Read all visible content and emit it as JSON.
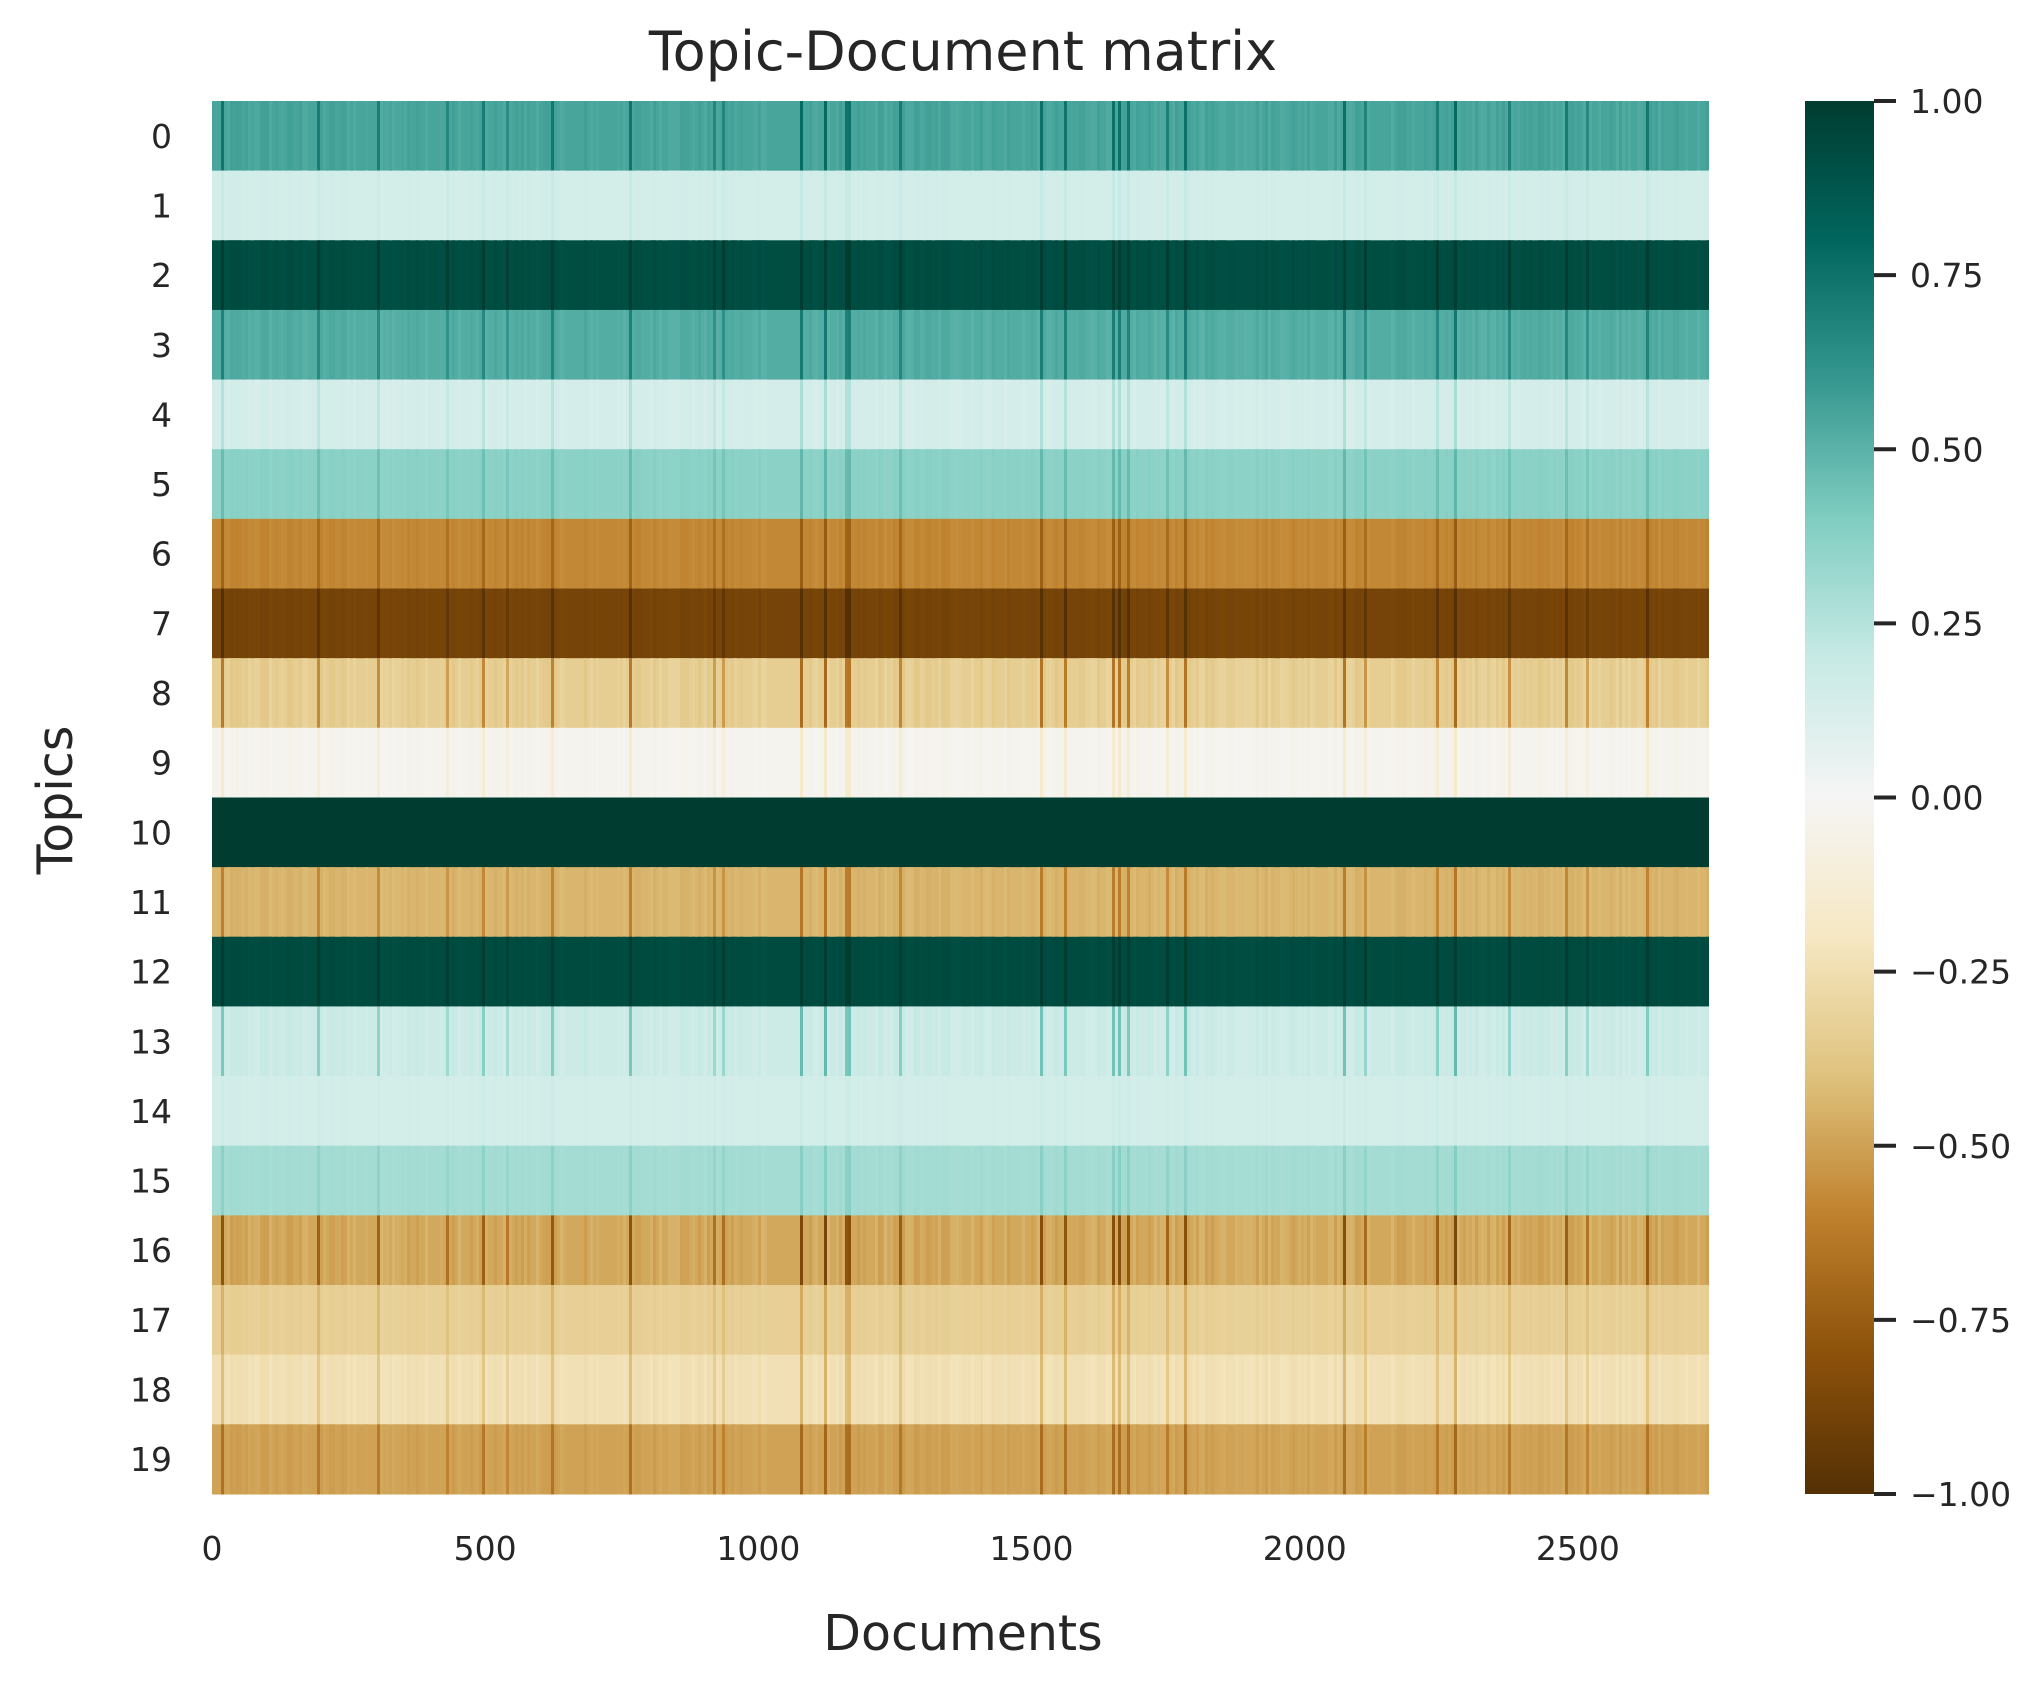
{
  "chart_data": {
    "type": "heatmap",
    "title": "Topic-Document matrix",
    "xlabel": "Documents",
    "ylabel": "Topics",
    "x_range": [
      0,
      2740
    ],
    "x_ticks": [
      "0",
      "500",
      "1000",
      "1500",
      "2000",
      "2500"
    ],
    "x_tick_values": [
      0,
      500,
      1000,
      1500,
      2000,
      2500
    ],
    "y_categories": [
      "0",
      "1",
      "2",
      "3",
      "4",
      "5",
      "6",
      "7",
      "8",
      "9",
      "10",
      "11",
      "12",
      "13",
      "14",
      "15",
      "16",
      "17",
      "18",
      "19"
    ],
    "row_mean_values": [
      0.55,
      0.15,
      0.92,
      0.52,
      0.14,
      0.37,
      -0.58,
      -0.88,
      -0.34,
      -0.03,
      1.0,
      -0.44,
      0.93,
      0.18,
      0.15,
      0.3,
      -0.48,
      -0.33,
      -0.24,
      -0.5
    ],
    "row_variation": [
      0.08,
      0.02,
      0.05,
      0.07,
      0.05,
      0.04,
      0.06,
      0.05,
      0.12,
      0.05,
      0.0,
      0.07,
      0.04,
      0.1,
      0.01,
      0.03,
      0.13,
      0.05,
      0.07,
      0.07
    ],
    "colorbar": {
      "colormap": "BrBG",
      "range": [
        -1,
        1
      ],
      "ticks": [
        "1.00",
        "0.75",
        "0.50",
        "0.25",
        "0.00",
        "−0.25",
        "−0.50",
        "−0.75",
        "−1.00"
      ],
      "tick_values": [
        1.0,
        0.75,
        0.5,
        0.25,
        0.0,
        -0.25,
        -0.5,
        -0.75,
        -1.0
      ]
    },
    "colors": {
      "text": "#262626",
      "brbg_stops": [
        "#543005",
        "#8c510a",
        "#bf812d",
        "#dfc27d",
        "#f6e8c3",
        "#f5f5f5",
        "#c7eae5",
        "#80cdc1",
        "#35978f",
        "#01665e",
        "#003c30"
      ]
    }
  }
}
